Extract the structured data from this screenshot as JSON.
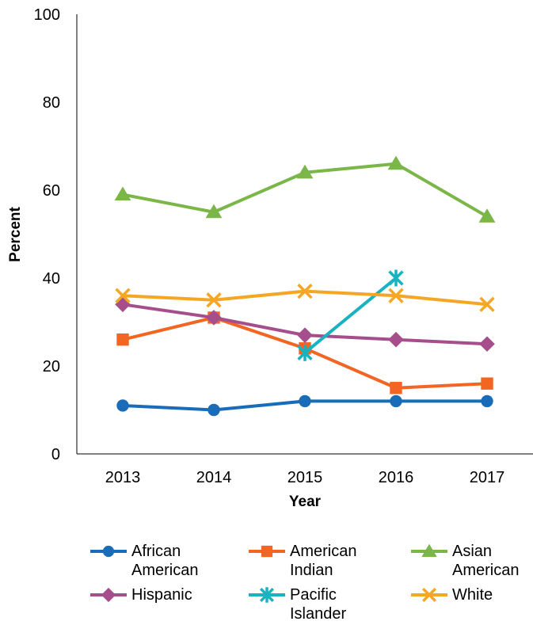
{
  "chart_data": {
    "type": "line",
    "xlabel": "Year",
    "ylabel": "Percent",
    "categories": [
      "2013",
      "2014",
      "2015",
      "2016",
      "2017"
    ],
    "ylim": [
      0,
      100
    ],
    "yticks": [
      0,
      20,
      40,
      60,
      80,
      100
    ],
    "grid": false,
    "legend_position": "bottom",
    "series": [
      {
        "name": "African American",
        "color": "#1a6bb8",
        "marker": "circle",
        "values": [
          11,
          10,
          12,
          12,
          12
        ]
      },
      {
        "name": "American Indian",
        "color": "#f26522",
        "marker": "square",
        "values": [
          26,
          31,
          24,
          15,
          16
        ]
      },
      {
        "name": "Asian American",
        "color": "#7ab648",
        "marker": "triangle",
        "values": [
          59,
          55,
          64,
          66,
          54
        ]
      },
      {
        "name": "Hispanic",
        "color": "#a64d8c",
        "marker": "diamond",
        "values": [
          34,
          31,
          27,
          26,
          25
        ]
      },
      {
        "name": "Pacific Islander",
        "color": "#18b2c0",
        "marker": "star",
        "values": [
          null,
          null,
          23,
          40,
          null
        ]
      },
      {
        "name": "White",
        "color": "#f5a623",
        "marker": "x",
        "values": [
          36,
          35,
          37,
          36,
          34
        ]
      }
    ]
  }
}
